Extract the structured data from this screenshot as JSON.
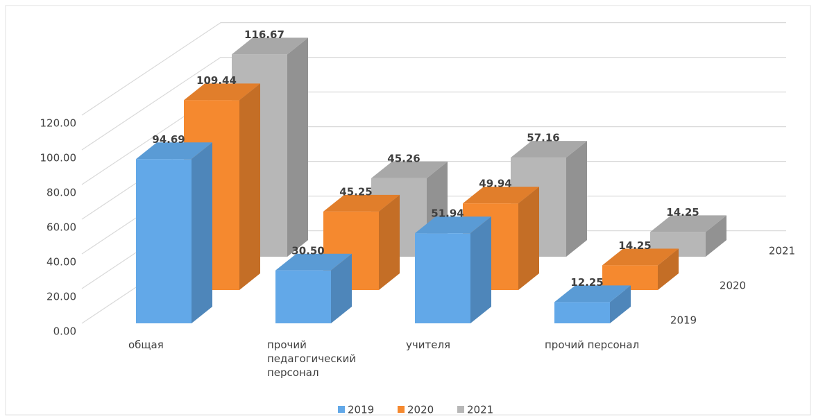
{
  "chart_data": {
    "type": "bar3d",
    "categories": [
      "общая",
      "прочий педагогический персонал",
      "учителя",
      "прочий персонал"
    ],
    "series": [
      {
        "name": "2019",
        "color": "#62a8e8",
        "values": [
          94.69,
          30.5,
          51.94,
          12.25
        ],
        "value_labels": [
          "94.69",
          "30.50",
          "51.94",
          "12.25"
        ]
      },
      {
        "name": "2020",
        "color": "#f5892f",
        "values": [
          109.44,
          45.25,
          49.94,
          14.25
        ],
        "value_labels": [
          "109.44",
          "45.25",
          "49.94",
          "14.25"
        ]
      },
      {
        "name": "2021",
        "color": "#b7b7b7",
        "values": [
          116.67,
          45.26,
          57.16,
          14.25
        ],
        "value_labels": [
          "116.67",
          "45.26",
          "57.16",
          "14.25"
        ]
      }
    ],
    "ylim": [
      0,
      120
    ],
    "yticks": [
      {
        "value": 0,
        "label": "0.00"
      },
      {
        "value": 20,
        "label": "20.00"
      },
      {
        "value": 40,
        "label": "40.00"
      },
      {
        "value": 60,
        "label": "60.00"
      },
      {
        "value": 80,
        "label": "80.00"
      },
      {
        "value": 100,
        "label": "100.00"
      },
      {
        "value": 120,
        "label": "120.00"
      }
    ],
    "grid": true,
    "legend": "bottom"
  }
}
